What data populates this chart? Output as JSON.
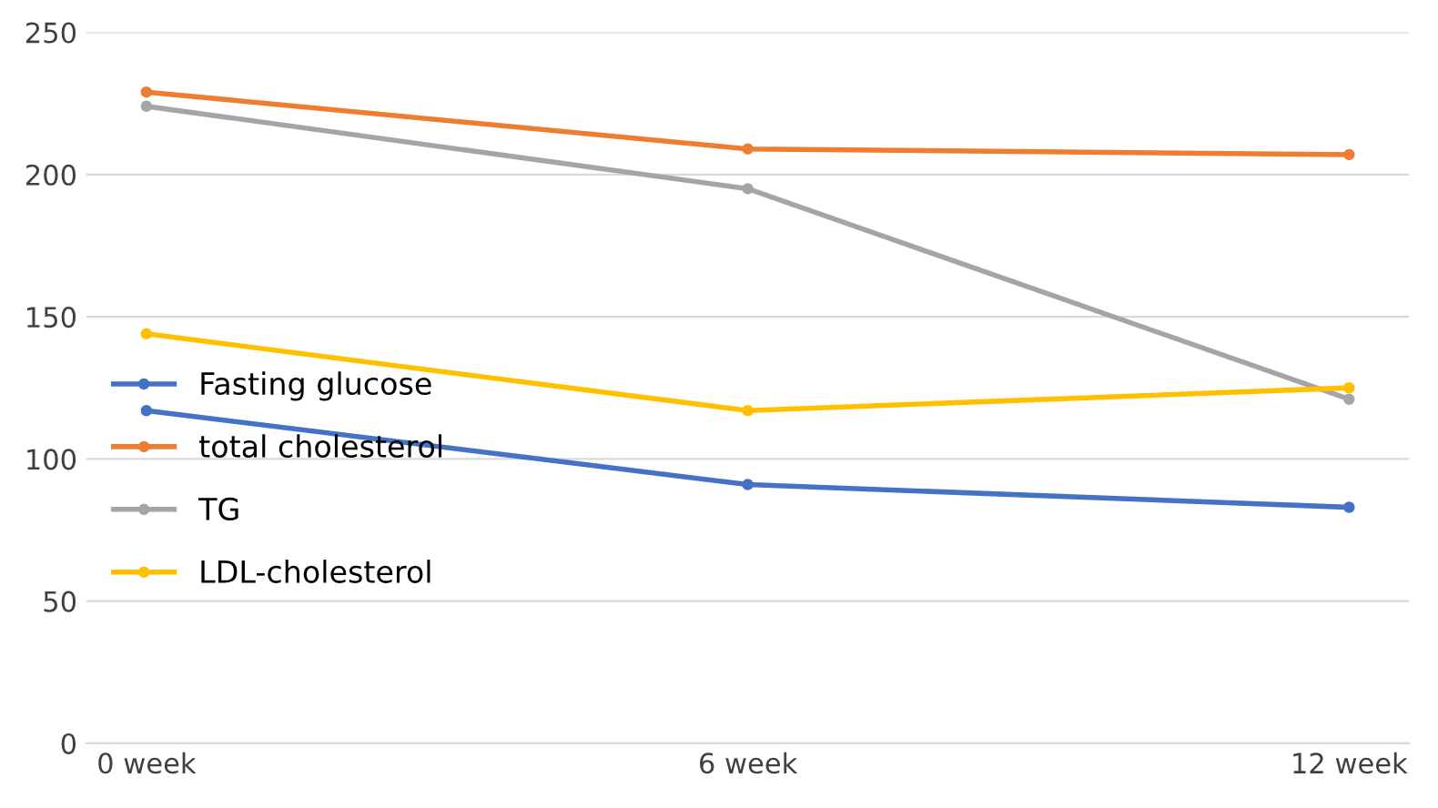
{
  "chart_data": {
    "type": "line",
    "categories": [
      "0 week",
      "6 week",
      "12 week"
    ],
    "series": [
      {
        "name": "Fasting glucose",
        "color": "#4472c4",
        "values": [
          117,
          91,
          83
        ]
      },
      {
        "name": "total cholesterol",
        "color": "#ed7d31",
        "values": [
          229,
          209,
          207
        ]
      },
      {
        "name": "TG",
        "color": "#a5a5a5",
        "values": [
          224,
          195,
          121
        ]
      },
      {
        "name": "LDL-cholesterol",
        "color": "#ffc000",
        "values": [
          144,
          117,
          125
        ]
      }
    ],
    "ylim": [
      0,
      250
    ],
    "yticks": [
      0,
      50,
      100,
      150,
      200,
      250
    ],
    "grid": "y",
    "legend": "left",
    "marker": "circle",
    "line_style": "solid"
  }
}
